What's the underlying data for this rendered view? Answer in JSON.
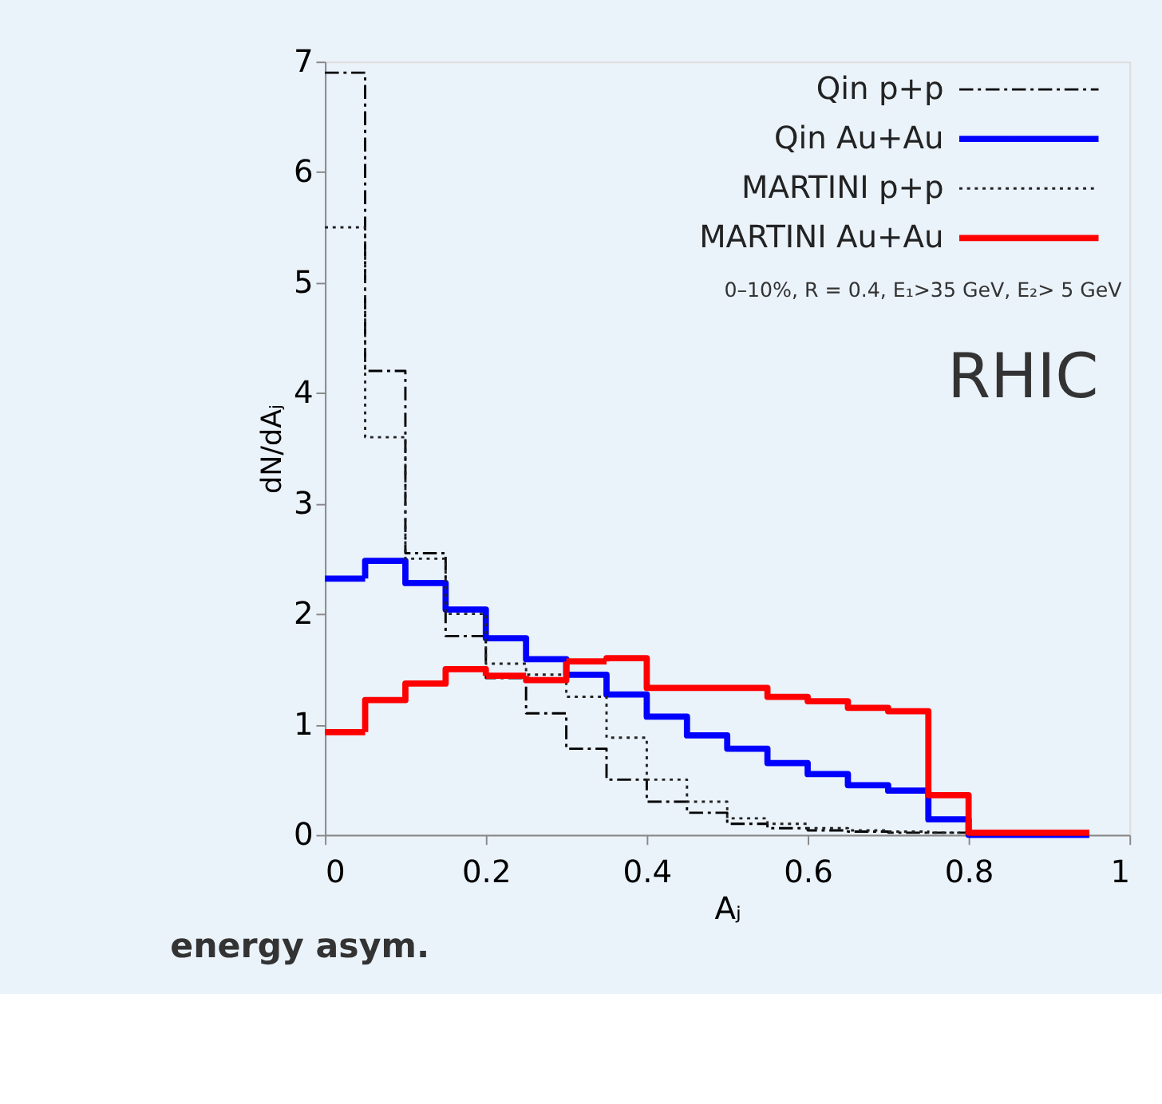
{
  "chart_data": {
    "type": "histogram",
    "xlabel": "Aⱼ",
    "ylabel": "dN/dAⱼ",
    "bins": [
      0,
      0.05,
      0.1,
      0.15,
      0.2,
      0.25,
      0.3,
      0.35,
      0.4,
      0.45,
      0.5,
      0.55,
      0.6,
      0.65,
      0.7,
      0.75,
      0.8,
      0.85,
      0.9,
      0.95
    ],
    "series": [
      {
        "name": "Qin p+p",
        "color": "#000000",
        "line_style": "dashed",
        "values": [
          6.9,
          4.2,
          2.55,
          1.8,
          1.42,
          1.1,
          0.78,
          0.5,
          0.3,
          0.2,
          0.1,
          0.06,
          0.04,
          0.03,
          0.02,
          0.02,
          0,
          0,
          0
        ]
      },
      {
        "name": "Qin Au+Au",
        "color": "#0000ff",
        "line_style": "solid",
        "values": [
          2.32,
          2.48,
          2.28,
          2.04,
          1.78,
          1.59,
          1.45,
          1.27,
          1.07,
          0.9,
          0.78,
          0.65,
          0.55,
          0.45,
          0.4,
          0.14,
          0,
          0,
          0
        ]
      },
      {
        "name": "MARTINI p+p",
        "color": "#222222",
        "line_style": "dotted",
        "values": [
          5.5,
          3.6,
          2.5,
          2.0,
          1.55,
          1.45,
          1.25,
          0.88,
          0.5,
          0.3,
          0.15,
          0.1,
          0.06,
          0.04,
          0.03,
          0.02,
          0,
          0,
          0
        ]
      },
      {
        "name": "MARTINI Au+Au",
        "color": "#ff0000",
        "line_style": "solid",
        "values": [
          0.93,
          1.22,
          1.37,
          1.5,
          1.44,
          1.4,
          1.57,
          1.6,
          1.33,
          1.33,
          1.33,
          1.25,
          1.21,
          1.15,
          1.12,
          0.36,
          0.02,
          0.02,
          0.02
        ]
      }
    ],
    "xlim": [
      0,
      1
    ],
    "xticks": [
      0,
      0.2,
      0.4,
      0.6,
      0.8,
      1
    ],
    "ylim": [
      0,
      7
    ],
    "yticks": [
      0,
      1,
      2,
      3,
      4,
      5,
      6,
      7
    ],
    "legend": "top right",
    "grid": false,
    "annotations": [
      "0–10%, R = 0.4, E₁>35 GeV, E₂> 5 GeV",
      "RHIC",
      "energy asym."
    ]
  }
}
